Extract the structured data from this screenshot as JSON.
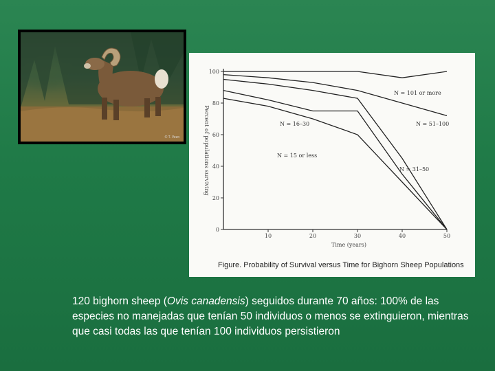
{
  "photo": {
    "credit": "© T. Vezo"
  },
  "chart_data": {
    "type": "line",
    "title": "Figure.  Probability of Survival versus Time for Bighorn Sheep Populations",
    "xlabel": "Time (years)",
    "ylabel": "Percent of populations surviving",
    "xlim": [
      0,
      50
    ],
    "ylim": [
      0,
      100
    ],
    "x_ticks": [
      "10",
      "20",
      "30",
      "40",
      "50"
    ],
    "y_ticks": [
      "0",
      "20",
      "40",
      "60",
      "80",
      "100"
    ],
    "grid": false,
    "series": [
      {
        "name": "N = 101 or more",
        "x": [
          0,
          20,
          30,
          40,
          50
        ],
        "y": [
          100,
          100,
          100,
          96,
          100
        ]
      },
      {
        "name": "N = 51–100",
        "x": [
          0,
          10,
          20,
          30,
          40,
          50
        ],
        "y": [
          98,
          96,
          93,
          88,
          80,
          72
        ]
      },
      {
        "name": "N = 31–50",
        "x": [
          0,
          10,
          20,
          30,
          40,
          50
        ],
        "y": [
          95,
          92,
          88,
          83,
          45,
          0
        ]
      },
      {
        "name": "N = 16–30",
        "x": [
          0,
          10,
          20,
          30,
          40,
          50
        ],
        "y": [
          88,
          82,
          75,
          75,
          35,
          0
        ]
      },
      {
        "name": "N = 15 or less",
        "x": [
          0,
          10,
          20,
          30,
          40,
          50
        ],
        "y": [
          83,
          78,
          70,
          60,
          30,
          0
        ]
      }
    ]
  },
  "caption": {
    "text_before": "120 bighorn sheep (",
    "species": "Ovis canadensis",
    "text_after": ") seguidos durante 70 años: 100% de las especies no manejadas que tenían 50 individuos o menos se extinguieron, mientras que casi todas las que tenían 100 individuos persistieron"
  }
}
